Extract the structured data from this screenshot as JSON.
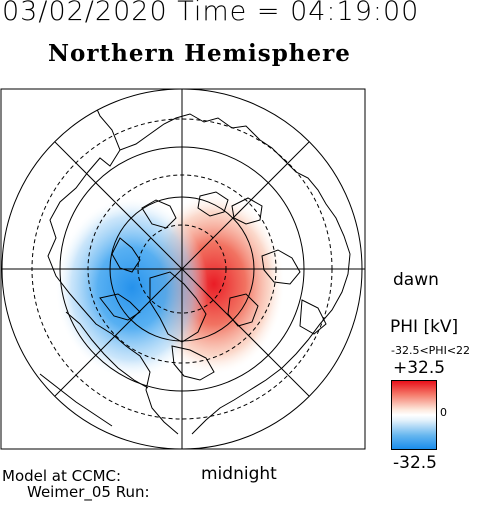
{
  "header": {
    "datetime": "03/02/2020 Time = 04:19:00",
    "hemisphere": "Northern Hemisphere"
  },
  "labels": {
    "dawn": "dawn",
    "midnight": "midnight",
    "model_line1": "Model at CCMC:",
    "model_line2": "Weimer_05 Run:"
  },
  "colorbar": {
    "title": "PHI [kV]",
    "range_text": "-32.5<PHI<22",
    "max": "+32.5",
    "zero": "0",
    "min": "-32.5",
    "colors": {
      "positive": "#e8101a",
      "zero": "#ffffff",
      "negative": "#1a8ceb"
    }
  },
  "map": {
    "projection": "polar",
    "pole": "north",
    "potential_cells": [
      {
        "sign": "positive",
        "side": "dawn",
        "color": "#e8101a"
      },
      {
        "sign": "negative",
        "side": "dusk",
        "color": "#1a8ceb"
      }
    ]
  }
}
